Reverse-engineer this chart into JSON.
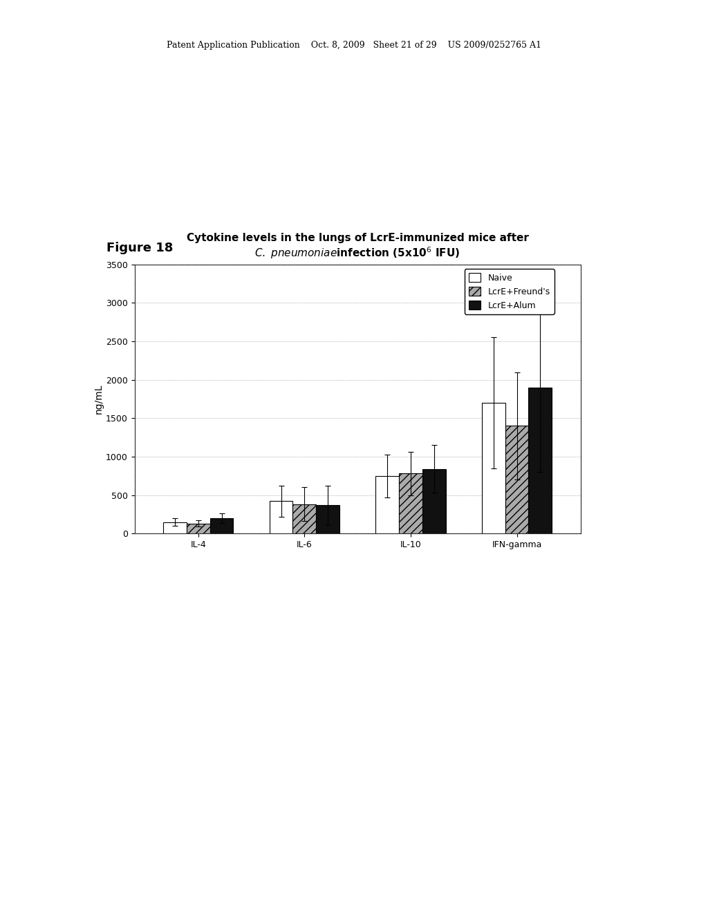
{
  "title_line1": "Cytokine levels in the lungs of LcrE-immunized mice after",
  "xlabel_groups": [
    "IL-4",
    "IL-6",
    "IL-10",
    "IFN-gamma"
  ],
  "ylabel": "ng/mL",
  "ylim": [
    0,
    3500
  ],
  "yticks": [
    0,
    500,
    1000,
    1500,
    2000,
    2500,
    3000,
    3500
  ],
  "series_labels": [
    "Naive",
    "LcrE+Freund's",
    "LcrE+Alum"
  ],
  "bar_colors": [
    "white",
    "#aaaaaa",
    "#111111"
  ],
  "bar_hatches": [
    "",
    "///",
    ""
  ],
  "bar_edgecolors": [
    "black",
    "black",
    "black"
  ],
  "values": [
    [
      150,
      130,
      200
    ],
    [
      420,
      380,
      370
    ],
    [
      750,
      780,
      840
    ],
    [
      1700,
      1400,
      1900
    ]
  ],
  "errors": [
    [
      50,
      40,
      60
    ],
    [
      200,
      220,
      250
    ],
    [
      280,
      280,
      310
    ],
    [
      850,
      700,
      1100
    ]
  ],
  "bar_width": 0.22,
  "title_fontsize": 11,
  "label_fontsize": 10,
  "tick_fontsize": 9,
  "legend_fontsize": 9,
  "header_text": "Patent Application Publication    Oct. 8, 2009   Sheet 21 of 29    US 2009/0252765 A1",
  "figure_label": "Figure 18",
  "bg_color": "white"
}
